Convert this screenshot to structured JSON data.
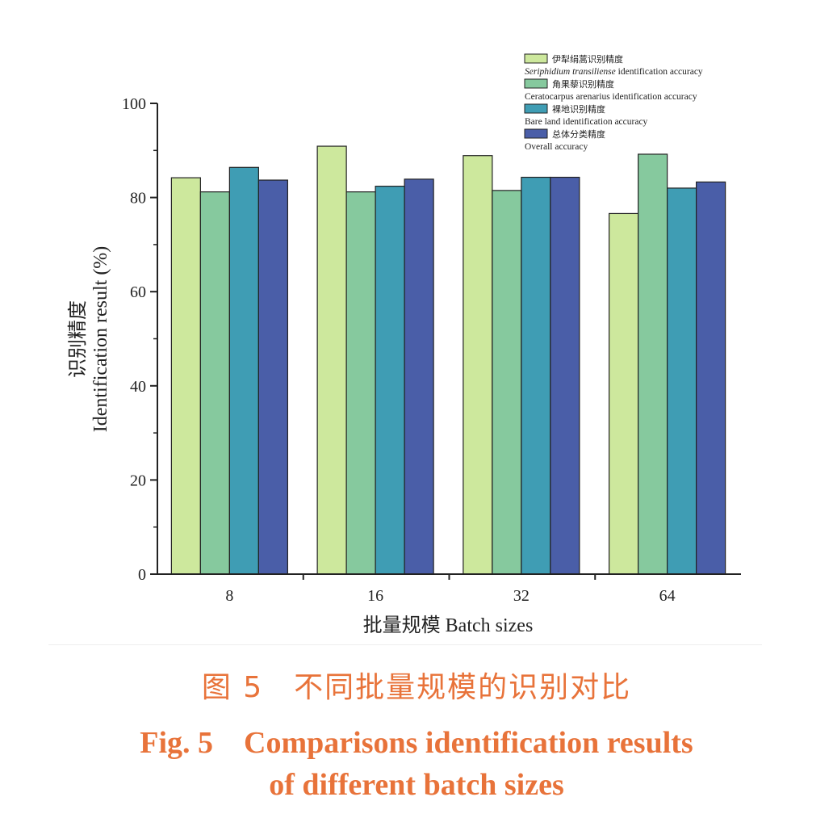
{
  "chart_data": {
    "type": "bar",
    "categories": [
      "8",
      "16",
      "32",
      "64"
    ],
    "series": [
      {
        "name": "伊犁绢蒿识别精度",
        "name_en": "Seriphidium transiliense identification accuracy",
        "color": "#cde89d",
        "values": [
          84.2,
          90.9,
          88.9,
          76.6
        ]
      },
      {
        "name": "角果藜识别精度",
        "name_en": "Ceratocarpus arenarius identification accuracy",
        "color": "#86c99e",
        "values": [
          81.2,
          81.2,
          81.5,
          89.2
        ]
      },
      {
        "name": "裸地识别精度",
        "name_en": "Bare land identification accuracy",
        "color": "#3f9db4",
        "values": [
          86.4,
          82.4,
          84.3,
          82.0
        ]
      },
      {
        "name": "总体分类精度",
        "name_en": "Overall accuracy",
        "color": "#4a5ea8",
        "values": [
          83.7,
          83.9,
          84.3,
          83.3
        ]
      }
    ],
    "xlabel": "批量规模 Batch sizes",
    "ylabel_cn": "识别精度",
    "ylabel_en": "Identification result (%)",
    "ylim": [
      0,
      100
    ],
    "yticks": [
      "0",
      "20",
      "40",
      "60",
      "80",
      "100"
    ],
    "legend_position": "top-right"
  },
  "caption": {
    "cn": "图 5　不同批量规模的识别对比",
    "en_line1": "Fig.  5　Comparisons identification results",
    "en_line2": "of different batch sizes"
  }
}
